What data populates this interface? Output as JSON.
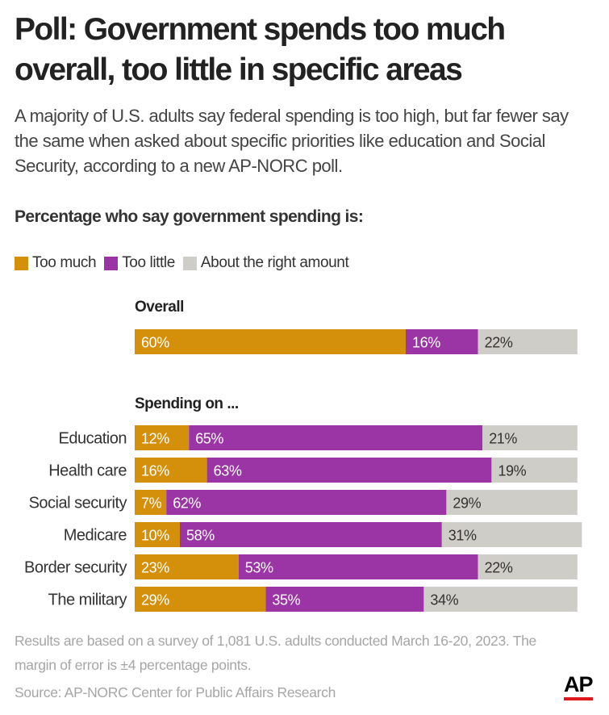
{
  "title": "Poll: Government spends too much overall, too little in specific areas",
  "subtitle": "A majority of U.S. adults say federal spending is too high, but far fewer say the same when asked about specific priorities like education and Social Security, according to a new AP-NORC poll.",
  "chart_heading": "Percentage who say government spending is:",
  "legend": [
    {
      "label": "Too much",
      "color": "#d4900b"
    },
    {
      "label": "Too little",
      "color": "#9b35a5"
    },
    {
      "label": "About the right amount",
      "color": "#cfcdc8"
    }
  ],
  "groups": {
    "overall": "Overall",
    "spending_on": "Spending on ..."
  },
  "chart_data": {
    "type": "bar",
    "orientation": "horizontal",
    "stacked": true,
    "xlim": [
      0,
      100
    ],
    "series_names": [
      "Too much",
      "Too little",
      "About the right amount"
    ],
    "colors": [
      "#d4900b",
      "#9b35a5",
      "#cfcdc8"
    ],
    "rows": [
      {
        "category": "Overall",
        "group": "Overall",
        "values": [
          60,
          16,
          22
        ],
        "labels": [
          "60%",
          "16%",
          "22%"
        ]
      },
      {
        "category": "Education",
        "group": "Spending on ...",
        "values": [
          12,
          65,
          21
        ],
        "labels": [
          "12%",
          "65%",
          "21%"
        ]
      },
      {
        "category": "Health care",
        "group": "Spending on ...",
        "values": [
          16,
          63,
          19
        ],
        "labels": [
          "16%",
          "63%",
          "19%"
        ]
      },
      {
        "category": "Social security",
        "group": "Spending on ...",
        "values": [
          7,
          62,
          29
        ],
        "labels": [
          "7%",
          "62%",
          "29%"
        ]
      },
      {
        "category": "Medicare",
        "group": "Spending on ...",
        "values": [
          10,
          58,
          31
        ],
        "labels": [
          "10%",
          "58%",
          "31%"
        ]
      },
      {
        "category": "Border security",
        "group": "Spending on ...",
        "values": [
          23,
          53,
          22
        ],
        "labels": [
          "23%",
          "53%",
          "22%"
        ]
      },
      {
        "category": "The military",
        "group": "Spending on ...",
        "values": [
          29,
          35,
          34
        ],
        "labels": [
          "29%",
          "35%",
          "34%"
        ]
      }
    ]
  },
  "note": "Results are based on a survey of 1,081 U.S. adults conducted March 16-20, 2023. The margin of error is ±4 percentage points.",
  "source": "Source: AP-NORC Center for Public Affairs Research",
  "logo_text": "AP"
}
